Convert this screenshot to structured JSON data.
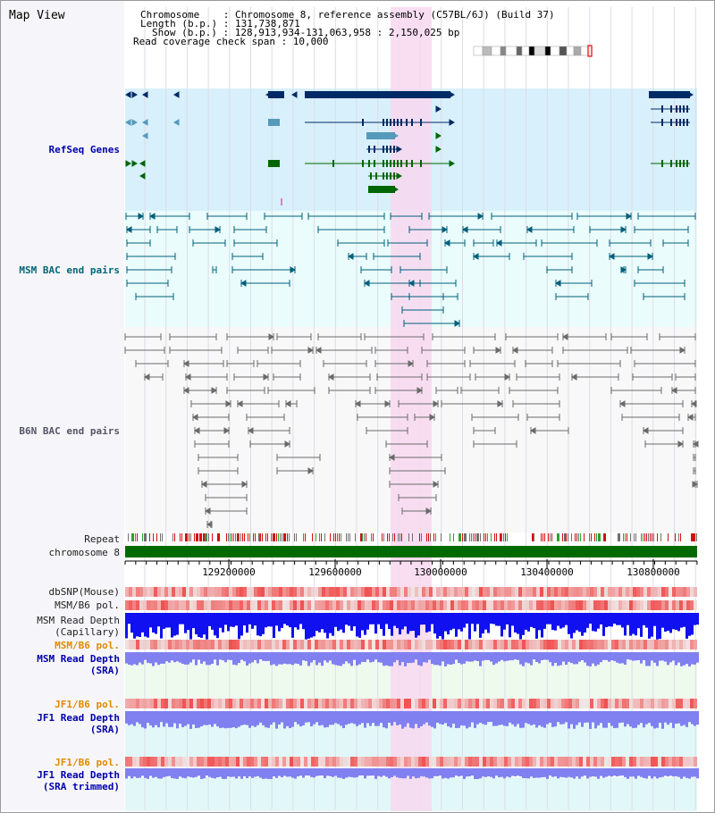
{
  "header": {
    "map_title": "Map View",
    "chromosome_line": "Chromosome    : Chromosome 8, reference assembly (C57BL/6J) (Build 37)",
    "length_line": "Length (b.p.) : 131,738,871",
    "show_line": "Show (b.p.) : 128,913,934-131,063,958 : 2,150,025 bp",
    "coverage_line": "Read coverage check span : 10,000"
  },
  "tracks": {
    "refseq_label": "RefSeq Genes",
    "msm_bac_label": "MSM BAC end pairs",
    "b6n_bac_label": "B6N BAC end pairs",
    "repeat_label": "Repeat",
    "chromosome_label": "chromosome 8",
    "dbsnp_label": "dbSNP(Mouse)",
    "msm_b6_pol_label": "MSM/B6 pol.",
    "msm_read_depth_cap_line1": "MSM Read Depth",
    "msm_read_depth_cap_line2": "(Capillary)",
    "msm_b6_pol2_label": "MSM/B6 pol.",
    "msm_read_depth_sra_line1": "MSM Read Depth",
    "msm_read_depth_sra_line2": "(SRA)",
    "jf1_b6_pol_label": "JF1/B6 pol.",
    "jf1_read_depth_sra_line1": "JF1 Read Depth",
    "jf1_read_depth_sra_line2": "(SRA)",
    "jf1_b6_pol2_label": "JF1/B6 pol.",
    "jf1_read_depth_trim_line1": "JF1 Read Depth",
    "jf1_read_depth_trim_line2": "(SRA trimmed)"
  },
  "axis": {
    "ticks": [
      "129200000",
      "129600000",
      "130000000",
      "130400000",
      "130800000"
    ]
  },
  "colors": {
    "refseq_bg": "#d8f0fb",
    "refseq_dark": "#002a66",
    "refseq_mid": "#5599bb",
    "refseq_green": "#006600",
    "msm_bg": "#eafcfc",
    "msm_line": "#005f7a",
    "b6n_line": "#6a6a6a",
    "highlight": "#f8d8f0",
    "chromosome_bar": "#006a00",
    "snp_red": "#f05050",
    "depth_blue": "#1010f0",
    "depth_light": "#8080f0"
  },
  "icons": [
    "chromosome-ideogram-icon"
  ]
}
